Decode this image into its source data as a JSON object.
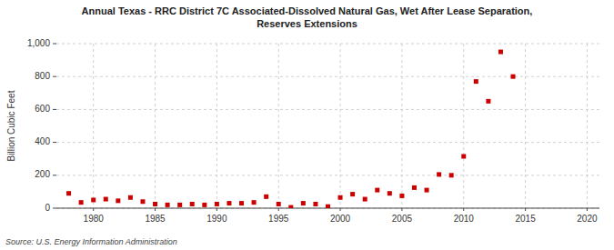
{
  "chart_data": {
    "type": "scatter",
    "title": "Annual Texas - RRC District 7C Associated-Dissolved Natural Gas, Wet After Lease Separation,\nReserves Extensions",
    "y_label": "Billion Cubic Feet",
    "source": "Source: U.S. Energy Information Administration",
    "x": [
      1978,
      1979,
      1980,
      1981,
      1982,
      1983,
      1984,
      1985,
      1986,
      1987,
      1988,
      1989,
      1990,
      1991,
      1992,
      1993,
      1994,
      1995,
      1996,
      1997,
      1998,
      1999,
      2000,
      2001,
      2002,
      2003,
      2004,
      2005,
      2006,
      2007,
      2008,
      2009,
      2010,
      2011,
      2012,
      2013,
      2014
    ],
    "values": [
      90,
      35,
      50,
      55,
      45,
      65,
      40,
      25,
      20,
      20,
      25,
      20,
      25,
      30,
      30,
      35,
      70,
      25,
      5,
      30,
      25,
      10,
      65,
      85,
      55,
      110,
      90,
      75,
      125,
      110,
      205,
      200,
      315,
      770,
      650,
      950,
      800
    ],
    "color": "#cc0000",
    "marker": "square",
    "xlim": [
      1977,
      2021
    ],
    "ylim": [
      0,
      1000
    ],
    "xticks": [
      1980,
      1985,
      1990,
      1995,
      2000,
      2005,
      2010,
      2015,
      2020
    ],
    "yticks": [
      0,
      200,
      400,
      600,
      800,
      {
        "value": 1000,
        "label": "1,000"
      }
    ],
    "grid": true
  }
}
